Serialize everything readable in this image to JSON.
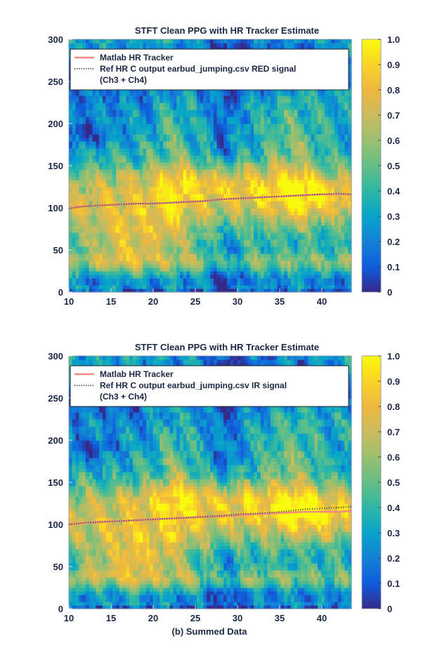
{
  "figure_caption": "(b) Summed Data",
  "colors": {
    "tracker": "#f08a82",
    "reference": "#4a4a4a",
    "axis_text": "#1a2744",
    "title_text": "#1a2744"
  },
  "chart_data": [
    {
      "type": "heatmap",
      "title": "STFT Clean PPG with HR Tracker Estimate",
      "xlabel": "",
      "ylabel": "",
      "xlim": [
        10,
        43.5
      ],
      "ylim": [
        0,
        300
      ],
      "x_ticks": [
        "10",
        "15",
        "20",
        "25",
        "30",
        "35",
        "40"
      ],
      "y_ticks": [
        "0",
        "50",
        "100",
        "150",
        "200",
        "250",
        "300"
      ],
      "colorbar_ticks": [
        "0",
        "0.1",
        "0.2",
        "0.3",
        "0.4",
        "0.5",
        "0.6",
        "0.7",
        "0.8",
        "0.9",
        "1.0"
      ],
      "colormap": "parula",
      "legend": {
        "position": "top-left",
        "entries": [
          "Matlab HR Tracker",
          "Ref HR C output earbud_jumping.csv RED signal",
          "(Ch3 + Ch4)"
        ]
      },
      "series": [
        {
          "name": "Matlab HR Tracker",
          "x": [
            10,
            12,
            14,
            16,
            18,
            20,
            22,
            24,
            26,
            28,
            30,
            32,
            34,
            36,
            38,
            40,
            42,
            43.5
          ],
          "y": [
            100,
            102,
            103,
            104,
            105,
            105,
            106,
            107,
            108,
            110,
            111,
            112,
            113,
            114,
            115,
            116,
            116,
            116
          ]
        },
        {
          "name": "Ref HR C output earbud_jumping.csv RED signal",
          "x": [
            10,
            12,
            14,
            16,
            18,
            20,
            22,
            24,
            26,
            28,
            30,
            32,
            34,
            36,
            38,
            40,
            42,
            43.5
          ],
          "y": [
            99,
            102,
            103,
            104,
            105,
            105,
            106,
            107,
            108,
            110,
            111,
            112,
            113,
            114,
            115,
            116,
            117,
            116
          ]
        }
      ]
    },
    {
      "type": "heatmap",
      "title": "STFT Clean PPG with HR Tracker Estimate",
      "xlabel": "(b) Summed Data",
      "ylabel": "",
      "xlim": [
        10,
        43.5
      ],
      "ylim": [
        0,
        300
      ],
      "x_ticks": [
        "10",
        "15",
        "20",
        "25",
        "30",
        "35",
        "40"
      ],
      "y_ticks": [
        "0",
        "50",
        "100",
        "150",
        "200",
        "250",
        "300"
      ],
      "colorbar_ticks": [
        "0",
        "0.1",
        "0.2",
        "0.3",
        "0.4",
        "0.5",
        "0.6",
        "0.7",
        "0.8",
        "0.9",
        "1.0"
      ],
      "colormap": "parula",
      "legend": {
        "position": "top-left",
        "entries": [
          "Matlab HR Tracker",
          "Ref HR C output earbud_jumping.csv IR signal",
          "(Ch3 + Ch4)"
        ]
      },
      "series": [
        {
          "name": "Matlab HR Tracker",
          "x": [
            10,
            12,
            14,
            16,
            18,
            20,
            22,
            24,
            26,
            28,
            30,
            32,
            34,
            36,
            38,
            40,
            42,
            43.5
          ],
          "y": [
            100,
            102,
            103,
            104,
            105,
            106,
            107,
            108,
            109,
            110,
            111,
            112,
            113,
            114,
            115,
            115,
            115,
            116
          ]
        },
        {
          "name": "Ref HR C output earbud_jumping.csv IR signal",
          "x": [
            10,
            12,
            14,
            16,
            18,
            20,
            22,
            24,
            26,
            28,
            30,
            32,
            34,
            36,
            38,
            40,
            42,
            43.5
          ],
          "y": [
            100,
            102,
            103,
            104,
            105,
            106,
            107,
            108,
            109,
            110,
            112,
            113,
            114,
            116,
            118,
            119,
            120,
            121
          ]
        }
      ]
    }
  ]
}
